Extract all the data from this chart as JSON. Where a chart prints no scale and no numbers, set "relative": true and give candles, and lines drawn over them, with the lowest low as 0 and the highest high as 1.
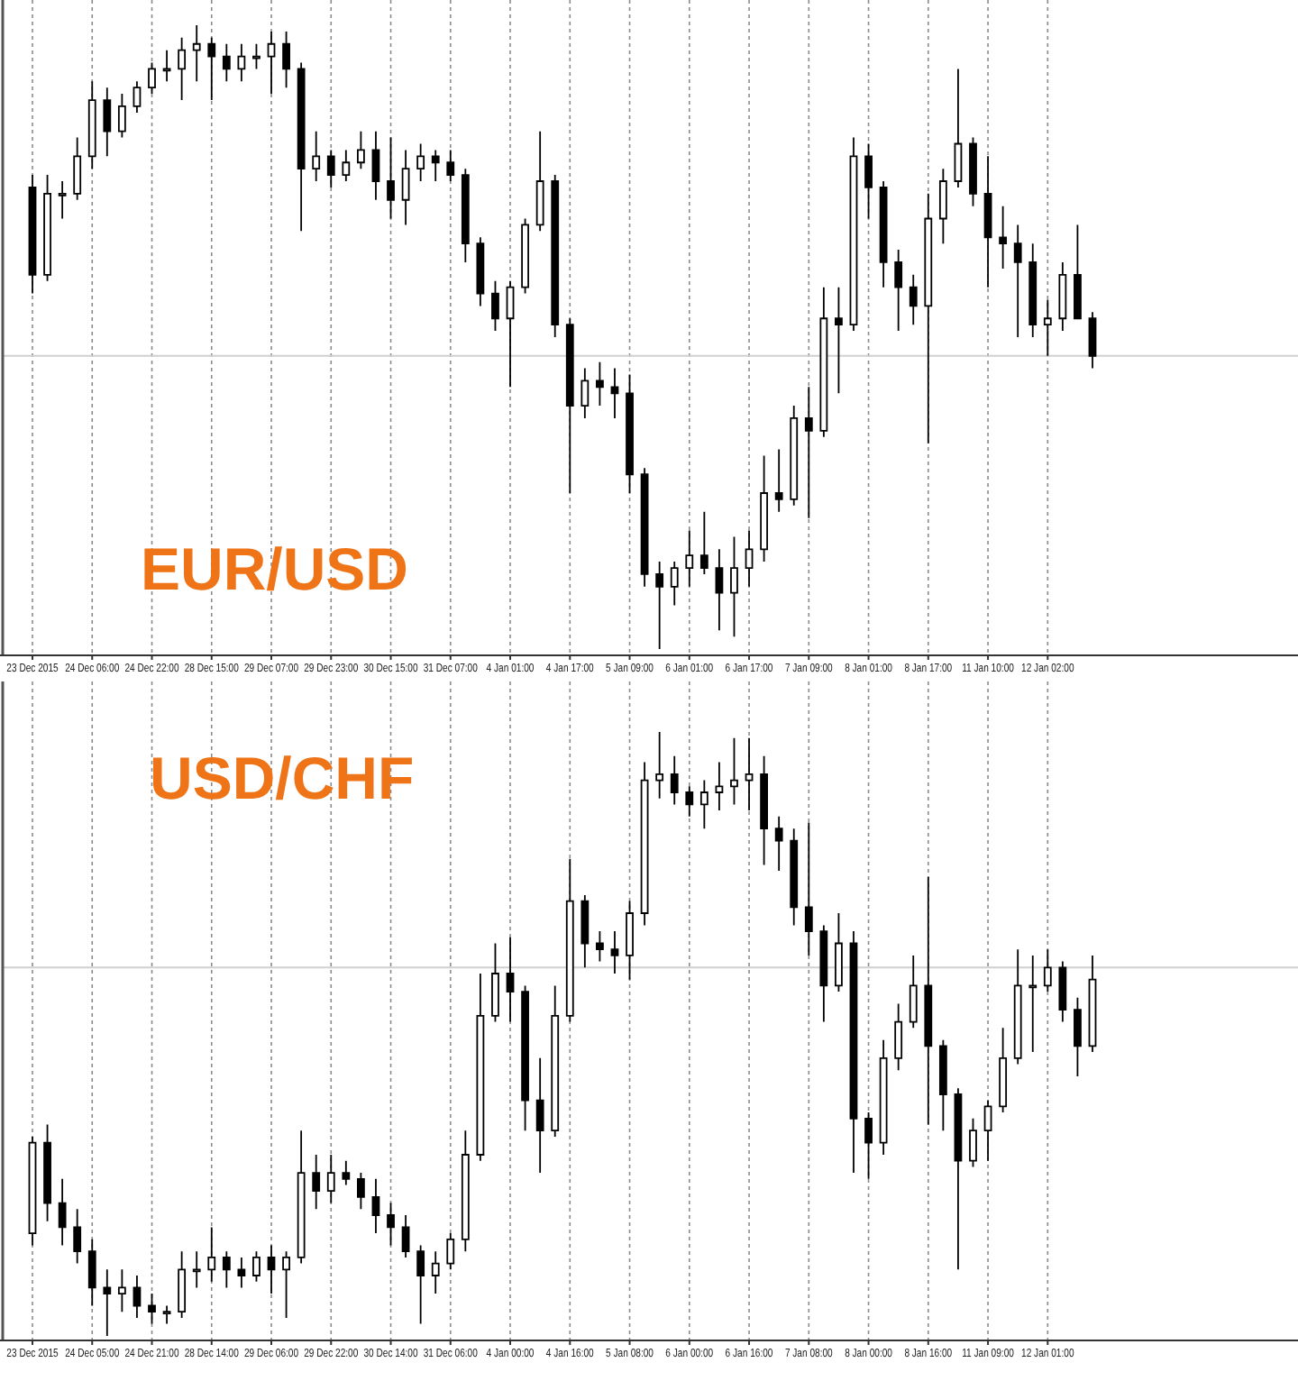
{
  "chart_data": [
    {
      "type": "candlestick",
      "title": "EUR/USD",
      "relative": true,
      "color": "#000000",
      "grid": "x",
      "categories": [
        "23 Dec 2015",
        null,
        null,
        null,
        "24 Dec 06:00",
        null,
        null,
        null,
        "24 Dec 22:00",
        null,
        null,
        null,
        "28 Dec 15:00",
        null,
        null,
        null,
        "29 Dec 07:00",
        null,
        null,
        null,
        "29 Dec 23:00",
        null,
        null,
        null,
        "30 Dec 15:00",
        null,
        null,
        null,
        "31 Dec 07:00",
        null,
        null,
        null,
        "4 Jan 01:00",
        null,
        null,
        null,
        "4 Jan 17:00",
        null,
        null,
        null,
        "5 Jan 09:00",
        null,
        null,
        null,
        "6 Jan 01:00",
        null,
        null,
        null,
        "6 Jan 17:00",
        null,
        null,
        null,
        "7 Jan 09:00",
        null,
        null,
        null,
        "8 Jan 01:00",
        null,
        null,
        null,
        "8 Jan 17:00",
        null,
        null,
        null,
        "11 Jan 10:00",
        null,
        null,
        null,
        "12 Jan 02:00",
        null,
        null,
        null
      ],
      "ohlc": [
        [
          0.74,
          0.76,
          0.57,
          0.6
        ],
        [
          0.6,
          0.76,
          0.59,
          0.73
        ],
        [
          0.73,
          0.75,
          0.69,
          0.73
        ],
        [
          0.73,
          0.82,
          0.72,
          0.79
        ],
        [
          0.79,
          0.91,
          0.77,
          0.88
        ],
        [
          0.88,
          0.9,
          0.79,
          0.83
        ],
        [
          0.83,
          0.89,
          0.82,
          0.87
        ],
        [
          0.87,
          0.91,
          0.86,
          0.9
        ],
        [
          0.9,
          0.94,
          0.89,
          0.93
        ],
        [
          0.93,
          0.96,
          0.91,
          0.93
        ],
        [
          0.93,
          0.98,
          0.88,
          0.96
        ],
        [
          0.96,
          1.0,
          0.91,
          0.97
        ],
        [
          0.97,
          0.98,
          0.88,
          0.95
        ],
        [
          0.95,
          0.97,
          0.91,
          0.93
        ],
        [
          0.93,
          0.97,
          0.91,
          0.95
        ],
        [
          0.95,
          0.97,
          0.93,
          0.95
        ],
        [
          0.95,
          0.99,
          0.89,
          0.97
        ],
        [
          0.97,
          0.99,
          0.9,
          0.93
        ],
        [
          0.93,
          0.94,
          0.67,
          0.77
        ],
        [
          0.77,
          0.83,
          0.75,
          0.79
        ],
        [
          0.79,
          0.8,
          0.74,
          0.76
        ],
        [
          0.76,
          0.8,
          0.75,
          0.78
        ],
        [
          0.78,
          0.83,
          0.77,
          0.8
        ],
        [
          0.8,
          0.83,
          0.72,
          0.75
        ],
        [
          0.75,
          0.82,
          0.69,
          0.72
        ],
        [
          0.72,
          0.8,
          0.68,
          0.77
        ],
        [
          0.77,
          0.81,
          0.75,
          0.79
        ],
        [
          0.79,
          0.8,
          0.75,
          0.78
        ],
        [
          0.78,
          0.8,
          0.75,
          0.76
        ],
        [
          0.76,
          0.77,
          0.62,
          0.65
        ],
        [
          0.65,
          0.66,
          0.55,
          0.57
        ],
        [
          0.57,
          0.59,
          0.51,
          0.53
        ],
        [
          0.53,
          0.59,
          0.42,
          0.58
        ],
        [
          0.58,
          0.69,
          0.57,
          0.68
        ],
        [
          0.68,
          0.83,
          0.67,
          0.75
        ],
        [
          0.75,
          0.76,
          0.5,
          0.52
        ],
        [
          0.52,
          0.53,
          0.25,
          0.39
        ],
        [
          0.39,
          0.45,
          0.37,
          0.43
        ],
        [
          0.43,
          0.46,
          0.39,
          0.42
        ],
        [
          0.42,
          0.45,
          0.37,
          0.41
        ],
        [
          0.41,
          0.44,
          0.25,
          0.28
        ],
        [
          0.28,
          0.29,
          0.1,
          0.12
        ],
        [
          0.12,
          0.14,
          0,
          0.1
        ],
        [
          0.1,
          0.14,
          0.07,
          0.13
        ],
        [
          0.13,
          0.19,
          0.1,
          0.15
        ],
        [
          0.15,
          0.22,
          0.12,
          0.13
        ],
        [
          0.13,
          0.16,
          0.03,
          0.09
        ],
        [
          0.09,
          0.18,
          0.02,
          0.13
        ],
        [
          0.13,
          0.19,
          0.1,
          0.16
        ],
        [
          0.16,
          0.31,
          0.14,
          0.25
        ],
        [
          0.25,
          0.32,
          0.22,
          0.24
        ],
        [
          0.24,
          0.39,
          0.23,
          0.37
        ],
        [
          0.37,
          0.42,
          0.21,
          0.35
        ],
        [
          0.35,
          0.58,
          0.34,
          0.53
        ],
        [
          0.53,
          0.58,
          0.41,
          0.52
        ],
        [
          0.52,
          0.82,
          0.51,
          0.79
        ],
        [
          0.79,
          0.81,
          0.69,
          0.74
        ],
        [
          0.74,
          0.75,
          0.58,
          0.62
        ],
        [
          0.62,
          0.64,
          0.51,
          0.58
        ],
        [
          0.58,
          0.6,
          0.52,
          0.55
        ],
        [
          0.55,
          0.73,
          0.33,
          0.69
        ],
        [
          0.69,
          0.77,
          0.65,
          0.75
        ],
        [
          0.75,
          0.93,
          0.74,
          0.81
        ],
        [
          0.81,
          0.82,
          0.71,
          0.73
        ],
        [
          0.73,
          0.79,
          0.58,
          0.66
        ],
        [
          0.66,
          0.71,
          0.61,
          0.65
        ],
        [
          0.65,
          0.68,
          0.5,
          0.62
        ],
        [
          0.62,
          0.65,
          0.5,
          0.52
        ],
        [
          0.52,
          0.56,
          0.47,
          0.53
        ],
        [
          0.53,
          0.62,
          0.51,
          0.6
        ],
        [
          0.6,
          0.68,
          0.53,
          0.53
        ],
        [
          0.53,
          0.54,
          0.45,
          0.47
        ]
      ],
      "ref_lines": [
        {
          "axis": "y",
          "value": 0.47,
          "color": "#d0d0d0"
        }
      ]
    },
    {
      "type": "candlestick",
      "title": "USD/CHF",
      "relative": true,
      "color": "#000000",
      "grid": "x",
      "categories": [
        "23 Dec 2015",
        null,
        null,
        null,
        "24 Dec 05:00",
        null,
        null,
        null,
        "24 Dec 21:00",
        null,
        null,
        null,
        "28 Dec 14:00",
        null,
        null,
        null,
        "29 Dec 06:00",
        null,
        null,
        null,
        "29 Dec 22:00",
        null,
        null,
        null,
        "30 Dec 14:00",
        null,
        null,
        null,
        "31 Dec 06:00",
        null,
        null,
        null,
        "4 Jan 00:00",
        null,
        null,
        null,
        "4 Jan 16:00",
        null,
        null,
        null,
        "5 Jan 08:00",
        null,
        null,
        null,
        "6 Jan 00:00",
        null,
        null,
        null,
        "6 Jan 16:00",
        null,
        null,
        null,
        "7 Jan 08:00",
        null,
        null,
        null,
        "8 Jan 00:00",
        null,
        null,
        null,
        "8 Jan 16:00",
        null,
        null,
        null,
        "11 Jan 09:00",
        null,
        null,
        null,
        "12 Jan 01:00",
        null,
        null,
        null
      ],
      "ohlc": [
        [
          0.17,
          0.33,
          0.15,
          0.32
        ],
        [
          0.32,
          0.35,
          0.19,
          0.22
        ],
        [
          0.22,
          0.26,
          0.15,
          0.18
        ],
        [
          0.18,
          0.21,
          0.12,
          0.14
        ],
        [
          0.14,
          0.16,
          0.05,
          0.08
        ],
        [
          0.08,
          0.11,
          0,
          0.07
        ],
        [
          0.07,
          0.11,
          0.04,
          0.08
        ],
        [
          0.08,
          0.1,
          0.03,
          0.05
        ],
        [
          0.05,
          0.07,
          0.02,
          0.04
        ],
        [
          0.04,
          0.05,
          0.02,
          0.04
        ],
        [
          0.04,
          0.14,
          0.03,
          0.11
        ],
        [
          0.11,
          0.14,
          0.08,
          0.11
        ],
        [
          0.11,
          0.18,
          0.09,
          0.13
        ],
        [
          0.13,
          0.14,
          0.08,
          0.11
        ],
        [
          0.11,
          0.13,
          0.08,
          0.1
        ],
        [
          0.1,
          0.14,
          0.09,
          0.13
        ],
        [
          0.13,
          0.15,
          0.07,
          0.11
        ],
        [
          0.11,
          0.14,
          0.03,
          0.13
        ],
        [
          0.13,
          0.34,
          0.12,
          0.27
        ],
        [
          0.27,
          0.3,
          0.21,
          0.24
        ],
        [
          0.24,
          0.3,
          0.22,
          0.27
        ],
        [
          0.27,
          0.29,
          0.25,
          0.26
        ],
        [
          0.26,
          0.27,
          0.21,
          0.23
        ],
        [
          0.23,
          0.26,
          0.17,
          0.2
        ],
        [
          0.2,
          0.22,
          0.15,
          0.18
        ],
        [
          0.18,
          0.2,
          0.13,
          0.14
        ],
        [
          0.14,
          0.15,
          0.02,
          0.1
        ],
        [
          0.1,
          0.14,
          0.07,
          0.12
        ],
        [
          0.12,
          0.17,
          0.11,
          0.16
        ],
        [
          0.16,
          0.34,
          0.14,
          0.3
        ],
        [
          0.3,
          0.6,
          0.29,
          0.53
        ],
        [
          0.53,
          0.65,
          0.52,
          0.6
        ],
        [
          0.6,
          0.66,
          0.52,
          0.57
        ],
        [
          0.57,
          0.58,
          0.34,
          0.39
        ],
        [
          0.39,
          0.46,
          0.27,
          0.34
        ],
        [
          0.34,
          0.58,
          0.33,
          0.53
        ],
        [
          0.53,
          0.79,
          0.52,
          0.72
        ],
        [
          0.72,
          0.73,
          0.61,
          0.65
        ],
        [
          0.65,
          0.67,
          0.62,
          0.64
        ],
        [
          0.64,
          0.67,
          0.6,
          0.63
        ],
        [
          0.63,
          0.72,
          0.59,
          0.7
        ],
        [
          0.7,
          0.95,
          0.68,
          0.92
        ],
        [
          0.92,
          1.0,
          0.89,
          0.93
        ],
        [
          0.93,
          0.96,
          0.88,
          0.9
        ],
        [
          0.9,
          0.91,
          0.86,
          0.88
        ],
        [
          0.88,
          0.92,
          0.84,
          0.9
        ],
        [
          0.9,
          0.95,
          0.87,
          0.91
        ],
        [
          0.91,
          0.99,
          0.88,
          0.92
        ],
        [
          0.92,
          0.99,
          0.87,
          0.93
        ],
        [
          0.93,
          0.96,
          0.78,
          0.84
        ],
        [
          0.84,
          0.86,
          0.77,
          0.82
        ],
        [
          0.82,
          0.84,
          0.68,
          0.71
        ],
        [
          0.71,
          0.85,
          0.63,
          0.67
        ],
        [
          0.67,
          0.68,
          0.52,
          0.58
        ],
        [
          0.58,
          0.7,
          0.57,
          0.65
        ],
        [
          0.65,
          0.67,
          0.27,
          0.36
        ],
        [
          0.36,
          0.37,
          0.26,
          0.32
        ],
        [
          0.32,
          0.49,
          0.3,
          0.46
        ],
        [
          0.46,
          0.55,
          0.44,
          0.52
        ],
        [
          0.52,
          0.63,
          0.51,
          0.58
        ],
        [
          0.58,
          0.76,
          0.35,
          0.48
        ],
        [
          0.48,
          0.49,
          0.34,
          0.4
        ],
        [
          0.4,
          0.41,
          0.11,
          0.29
        ],
        [
          0.29,
          0.36,
          0.28,
          0.34
        ],
        [
          0.34,
          0.39,
          0.29,
          0.38
        ],
        [
          0.38,
          0.51,
          0.37,
          0.46
        ],
        [
          0.46,
          0.64,
          0.45,
          0.58
        ],
        [
          0.58,
          0.63,
          0.47,
          0.58
        ],
        [
          0.58,
          0.64,
          0.57,
          0.61
        ],
        [
          0.61,
          0.62,
          0.52,
          0.54
        ],
        [
          0.54,
          0.56,
          0.43,
          0.48
        ],
        [
          0.48,
          0.63,
          0.47,
          0.59
        ]
      ],
      "ref_lines": [
        {
          "axis": "y",
          "value": 0.61,
          "color": "#d0d0d0"
        }
      ]
    }
  ]
}
